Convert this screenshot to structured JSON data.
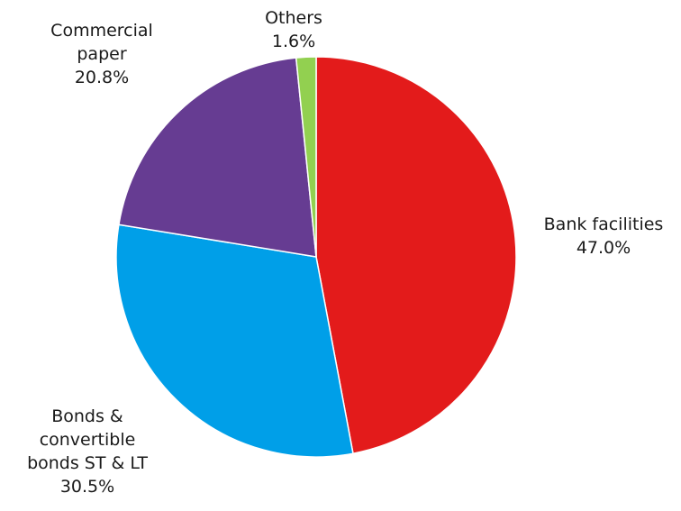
{
  "chart_data": {
    "type": "pie",
    "slices": [
      {
        "label_lines": [
          "Bank facilities"
        ],
        "value_label": "47.0%",
        "value": 47.0,
        "color": "#e31b1b"
      },
      {
        "label_lines": [
          "Bonds &",
          "convertible",
          "bonds ST & LT"
        ],
        "value_label": "30.5%",
        "value": 30.5,
        "color": "#009fe8"
      },
      {
        "label_lines": [
          "Commercial",
          "paper"
        ],
        "value_label": "20.8%",
        "value": 20.8,
        "color": "#663c92"
      },
      {
        "label_lines": [
          "Others"
        ],
        "value_label": "1.6%",
        "value": 1.6,
        "color": "#92d050"
      }
    ],
    "start_angle_deg": 0,
    "direction": "clockwise",
    "legend": "none",
    "data_labels": "outside"
  }
}
